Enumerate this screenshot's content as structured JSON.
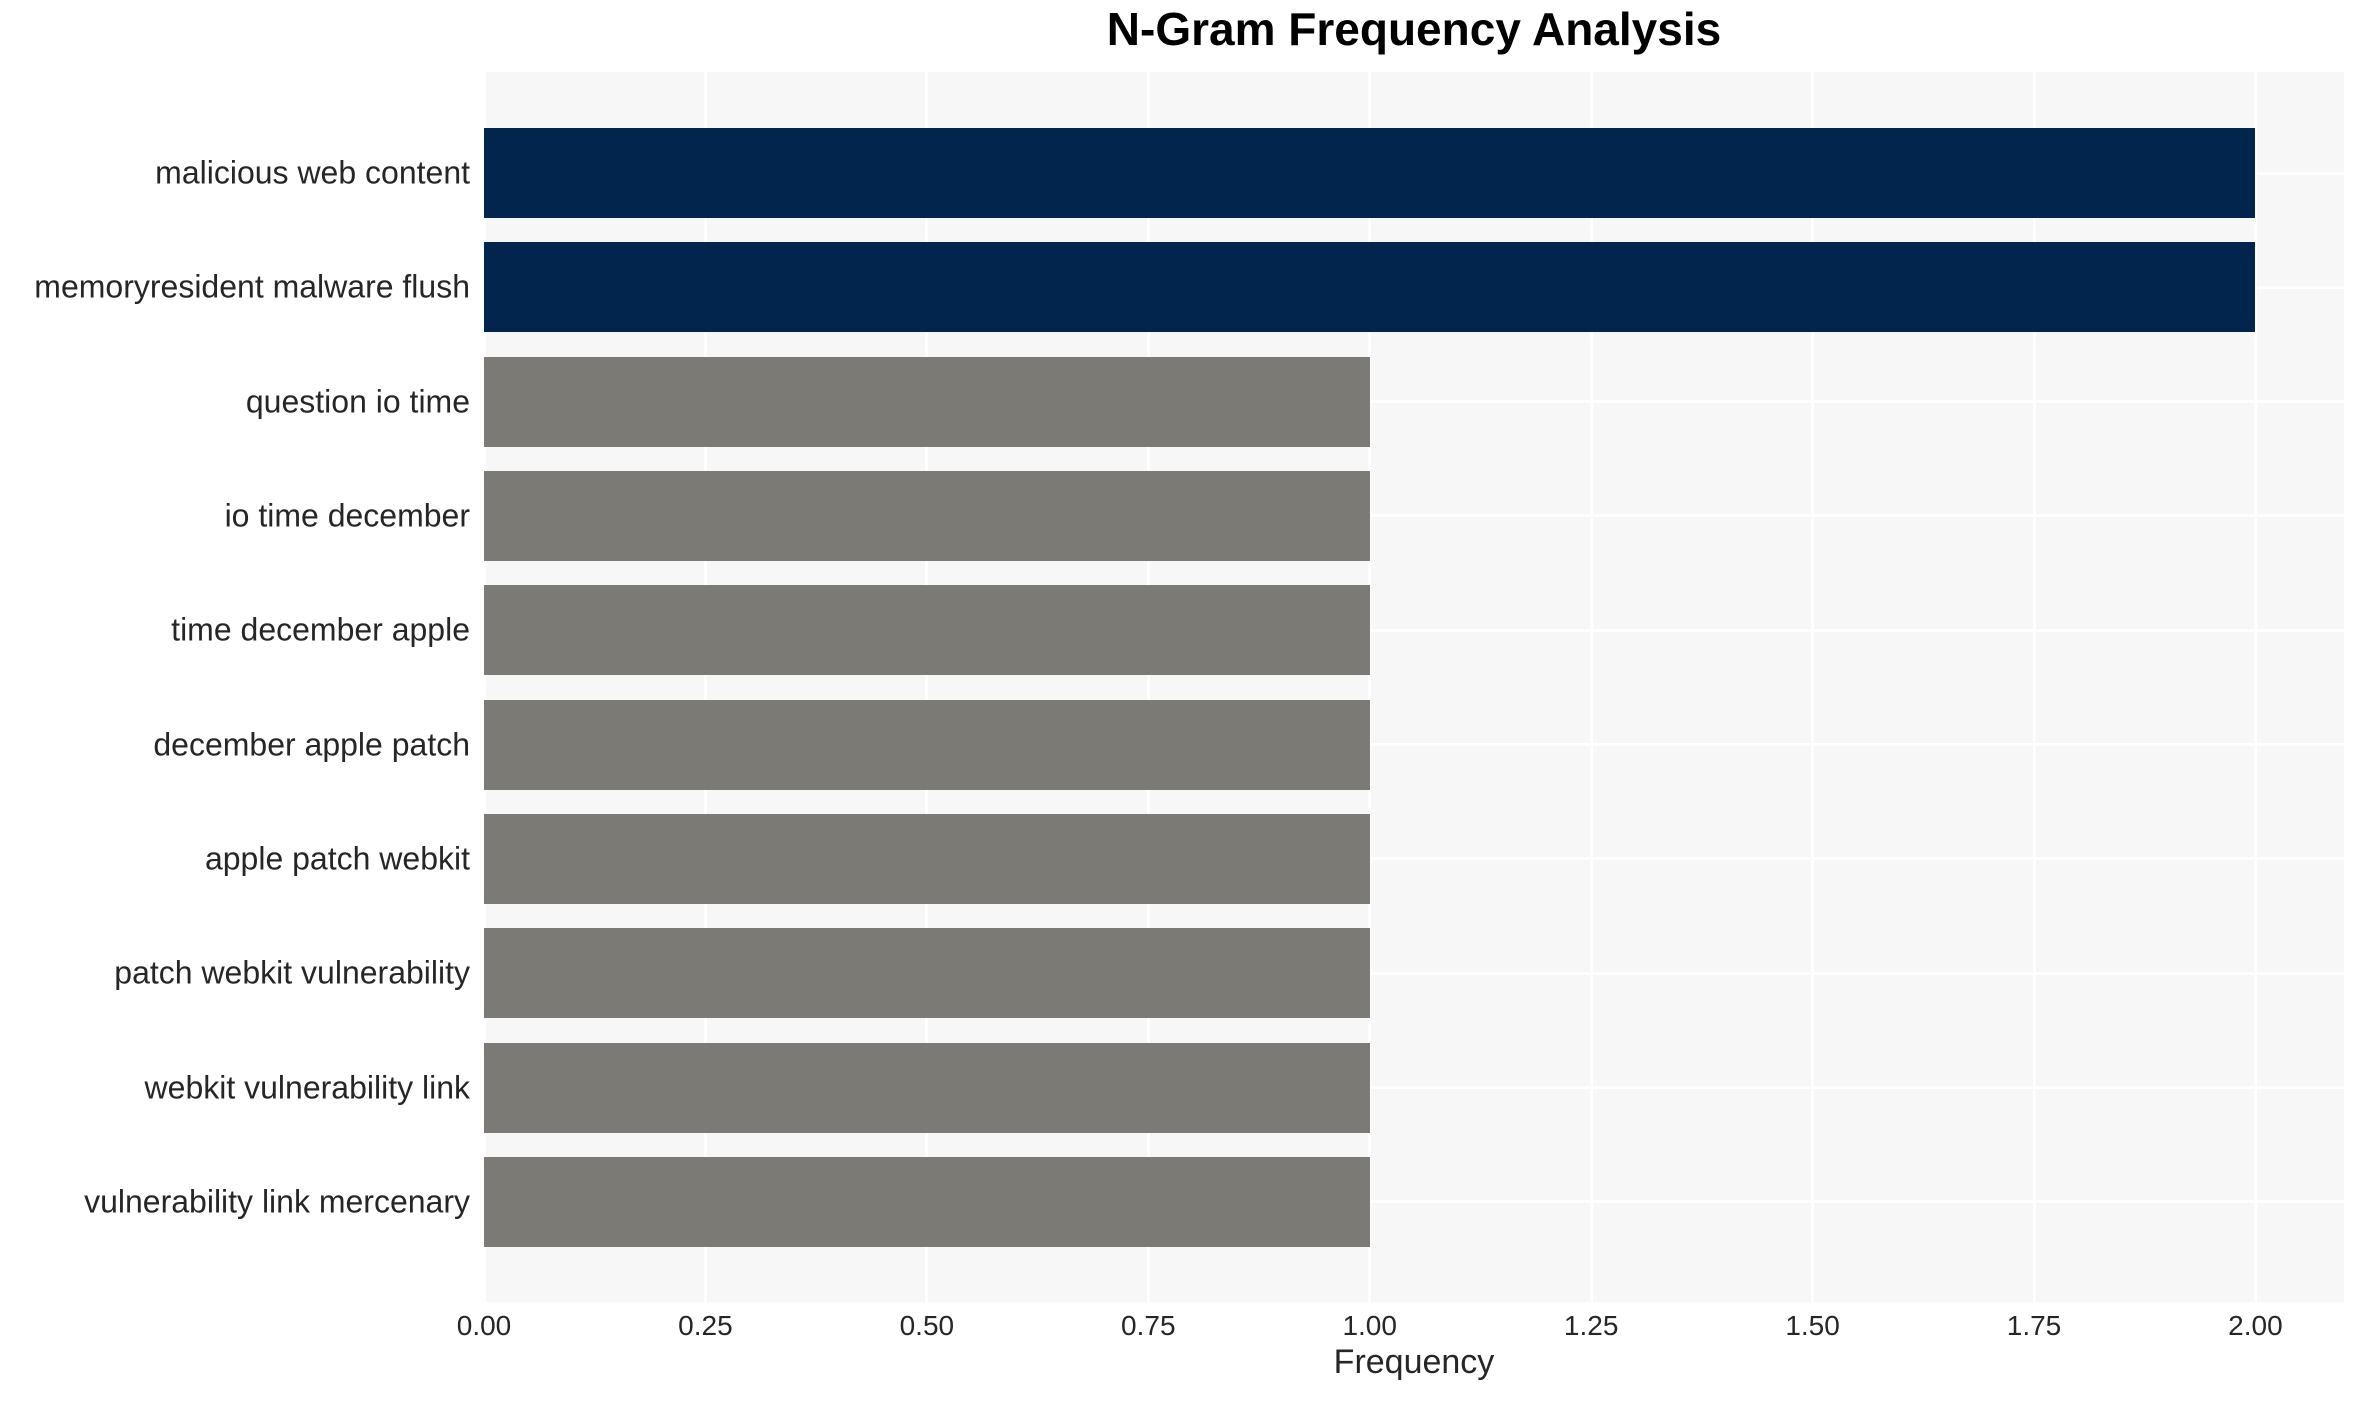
{
  "chart_data": {
    "type": "bar",
    "orientation": "horizontal",
    "title": "N-Gram Frequency Analysis",
    "xlabel": "Frequency",
    "ylabel": "",
    "categories": [
      "malicious web content",
      "memoryresident malware flush",
      "question io time",
      "io time december",
      "time december apple",
      "december apple patch",
      "apple patch webkit",
      "patch webkit vulnerability",
      "webkit vulnerability link",
      "vulnerability link mercenary"
    ],
    "values": [
      2,
      2,
      1,
      1,
      1,
      1,
      1,
      1,
      1,
      1
    ],
    "bar_colors": [
      "#02254e",
      "#02254e",
      "#7b7a75",
      "#7b7a75",
      "#7b7a75",
      "#7b7a75",
      "#7b7a75",
      "#7b7a75",
      "#7b7a75",
      "#7b7a75"
    ],
    "xlim": [
      0,
      2.1
    ],
    "xticks": {
      "values": [
        0,
        0.25,
        0.5,
        0.75,
        1.0,
        1.25,
        1.5,
        1.75,
        2.0
      ],
      "labels": [
        "0.00",
        "0.25",
        "0.50",
        "0.75",
        "1.00",
        "1.25",
        "1.50",
        "1.75",
        "2.00"
      ]
    },
    "grid": "on",
    "legend_position": "none",
    "colors": {
      "plot_background": "#f7f7f7",
      "grid_line": "#ffffff",
      "tick_text": "#262626",
      "title_text": "#000000"
    }
  }
}
